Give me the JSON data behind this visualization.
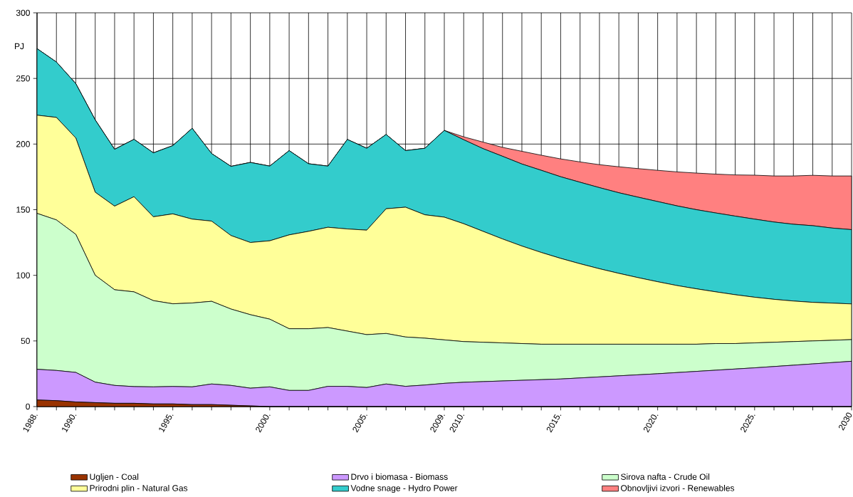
{
  "chart_data": {
    "type": "area",
    "stacked": true,
    "ylabel": "PJ",
    "x": [
      1988,
      1989,
      1990,
      1991,
      1992,
      1993,
      1994,
      1995,
      1996,
      1997,
      1998,
      1999,
      2000,
      2001,
      2002,
      2003,
      2004,
      2005,
      2006,
      2007,
      2008,
      2009,
      2010,
      2011,
      2012,
      2013,
      2014,
      2015,
      2016,
      2017,
      2018,
      2019,
      2020,
      2021,
      2022,
      2023,
      2024,
      2025,
      2026,
      2027,
      2028,
      2029,
      2030
    ],
    "xlim": [
      1988,
      2030
    ],
    "xticks": [
      {
        "value": 1988,
        "label": "1988."
      },
      {
        "value": 1989,
        "label": null
      },
      {
        "value": 1990,
        "label": "1990."
      },
      {
        "value": 1991,
        "label": null
      },
      {
        "value": 1992,
        "label": null
      },
      {
        "value": 1993,
        "label": null
      },
      {
        "value": 1994,
        "label": null
      },
      {
        "value": 1995,
        "label": "1995."
      },
      {
        "value": 1996,
        "label": null
      },
      {
        "value": 1997,
        "label": null
      },
      {
        "value": 1998,
        "label": null
      },
      {
        "value": 1999,
        "label": null
      },
      {
        "value": 2000,
        "label": "2000."
      },
      {
        "value": 2001,
        "label": null
      },
      {
        "value": 2002,
        "label": null
      },
      {
        "value": 2003,
        "label": null
      },
      {
        "value": 2004,
        "label": null
      },
      {
        "value": 2005,
        "label": "2005."
      },
      {
        "value": 2006,
        "label": null
      },
      {
        "value": 2007,
        "label": null
      },
      {
        "value": 2008,
        "label": null
      },
      {
        "value": 2009,
        "label": "2009."
      },
      {
        "value": 2010,
        "label": "2010."
      },
      {
        "value": 2011,
        "label": null
      },
      {
        "value": 2012,
        "label": null
      },
      {
        "value": 2013,
        "label": null
      },
      {
        "value": 2014,
        "label": null
      },
      {
        "value": 2015,
        "label": "2015."
      },
      {
        "value": 2016,
        "label": null
      },
      {
        "value": 2017,
        "label": null
      },
      {
        "value": 2018,
        "label": null
      },
      {
        "value": 2019,
        "label": null
      },
      {
        "value": 2020,
        "label": "2020."
      },
      {
        "value": 2021,
        "label": null
      },
      {
        "value": 2022,
        "label": null
      },
      {
        "value": 2023,
        "label": null
      },
      {
        "value": 2024,
        "label": null
      },
      {
        "value": 2025,
        "label": "2025."
      },
      {
        "value": 2026,
        "label": null
      },
      {
        "value": 2027,
        "label": null
      },
      {
        "value": 2028,
        "label": null
      },
      {
        "value": 2029,
        "label": null
      },
      {
        "value": 2030,
        "label": "2030"
      }
    ],
    "ylim": [
      0,
      300
    ],
    "yticks": [
      0,
      50,
      100,
      150,
      200,
      250,
      300
    ],
    "grid": true,
    "legend": "bottom",
    "series": [
      {
        "name": "Ugljen - Coal",
        "color": "#993300",
        "values": [
          5,
          4.5,
          3.5,
          3,
          2.5,
          2.5,
          2,
          2,
          1.5,
          1.5,
          1,
          0.5,
          0,
          0,
          0,
          0,
          0,
          0,
          0,
          0,
          0,
          0,
          0,
          0,
          0,
          0,
          0,
          0,
          0,
          0,
          0,
          0,
          0,
          0,
          0,
          0,
          0,
          0,
          0,
          0,
          0,
          0,
          0
        ]
      },
      {
        "name": "Drvo i biomasa - Biomass",
        "color": "#cc99ff",
        "values": [
          23.4,
          23,
          22.5,
          15.6,
          13.6,
          12.7,
          13,
          13.3,
          13.5,
          15.7,
          15.1,
          13.5,
          15,
          12.3,
          12.3,
          15.4,
          15.4,
          14.5,
          17.2,
          15.4,
          16.4,
          17.7,
          18.5,
          19,
          19.5,
          20,
          20.5,
          21,
          21.8,
          22.6,
          23.4,
          24.2,
          25,
          25.9,
          26.8,
          27.7,
          28.6,
          29.5,
          30.5,
          31.5,
          32.5,
          33.5,
          34.5
        ]
      },
      {
        "name": "Sirova nafta - Crude Oil",
        "color": "#ccffcc",
        "values": [
          118.8,
          114.7,
          105.2,
          81.4,
          72.9,
          72.2,
          65.7,
          63,
          63.9,
          63,
          58.2,
          56,
          51.6,
          47,
          47,
          44.8,
          42.1,
          40.3,
          38.5,
          37.6,
          35.7,
          33.1,
          31,
          30,
          29,
          28,
          27,
          26.5,
          25.7,
          24.9,
          24.1,
          23.3,
          22.5,
          21.6,
          20.7,
          20.3,
          19.4,
          19,
          18.5,
          18,
          17.5,
          17,
          16.5
        ]
      },
      {
        "name": "Prirodni plin - Natural Gas",
        "color": "#ffff99",
        "values": [
          74.8,
          78.1,
          73.4,
          63.3,
          63.7,
          72.5,
          63.9,
          68.5,
          63.9,
          61.1,
          56,
          55,
          59.7,
          71.5,
          74.2,
          76.4,
          77.8,
          79.6,
          95,
          98.9,
          94,
          93.5,
          89.8,
          84.5,
          79.2,
          74.3,
          69.9,
          65.4,
          61.3,
          57.5,
          54,
          50.7,
          47.6,
          44.7,
          42.2,
          39.4,
          37.2,
          34.8,
          32.7,
          30.9,
          29.4,
          28.3,
          27.2
        ]
      },
      {
        "name": "Vodne snage - Hydro Power",
        "color": "#33cccc",
        "values": [
          50.7,
          42.2,
          41.4,
          55.1,
          43.3,
          43.7,
          48.7,
          52,
          69.2,
          51.5,
          52.7,
          61,
          56.9,
          64.2,
          51.5,
          46.6,
          68.2,
          62.4,
          56.6,
          43.1,
          50.7,
          66.1,
          64,
          63,
          63,
          62.5,
          62.6,
          62.2,
          62.1,
          61.8,
          61.4,
          61.3,
          61.1,
          60.7,
          60.3,
          60.1,
          59.9,
          59.5,
          58.9,
          58.5,
          58.4,
          57.2,
          56.6
        ]
      },
      {
        "name": "Obnovljivi izvori - Renewables",
        "color": "#ff8080",
        "values": [
          0,
          0,
          0,
          0,
          0,
          0,
          0,
          0,
          0,
          0,
          0,
          0,
          0,
          0,
          0,
          0,
          0,
          0,
          0,
          0,
          0,
          0,
          2.2,
          5,
          6.8,
          9.7,
          11.5,
          13.6,
          15.5,
          17.5,
          19.8,
          21.8,
          23.8,
          25.9,
          27.9,
          29.6,
          31.4,
          33.5,
          35.1,
          36.8,
          38.4,
          39.7,
          40.9
        ]
      }
    ]
  }
}
